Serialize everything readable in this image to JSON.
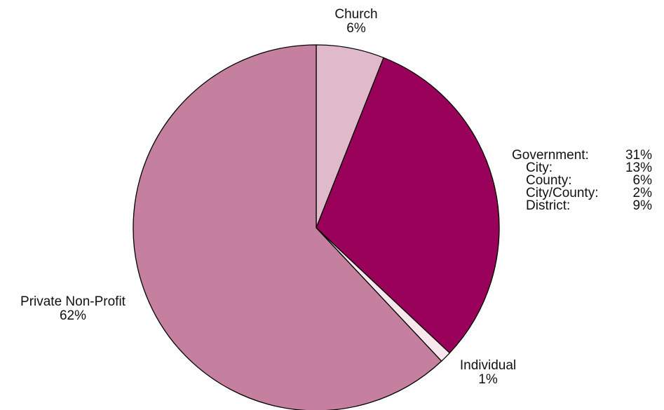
{
  "chart_data": {
    "type": "pie",
    "slices": [
      {
        "label": "Church",
        "percent_text": "6%",
        "value": 6,
        "color": "#E0B9CA"
      },
      {
        "label": "Government",
        "percent_text": "31%",
        "value": 31,
        "color": "#99005A"
      },
      {
        "label": "Individual",
        "percent_text": "1%",
        "value": 1,
        "color": "#F8E8EE"
      },
      {
        "label": "Private Non-Profit",
        "percent_text": "62%",
        "value": 62,
        "color": "#C6809F"
      }
    ],
    "government_breakdown": {
      "label": "Government:",
      "value_text": "31%",
      "items": [
        {
          "label": "City:",
          "value_text": "13%",
          "value": 13
        },
        {
          "label": "County:",
          "value_text": "6%",
          "value": 6
        },
        {
          "label": "City/County:",
          "value_text": "2%",
          "value": 2
        },
        {
          "label": "District:",
          "value_text": "9%",
          "value": 9
        }
      ]
    },
    "start_angle": "12 o'clock",
    "direction": "clockwise",
    "stroke_color": "#000000"
  }
}
